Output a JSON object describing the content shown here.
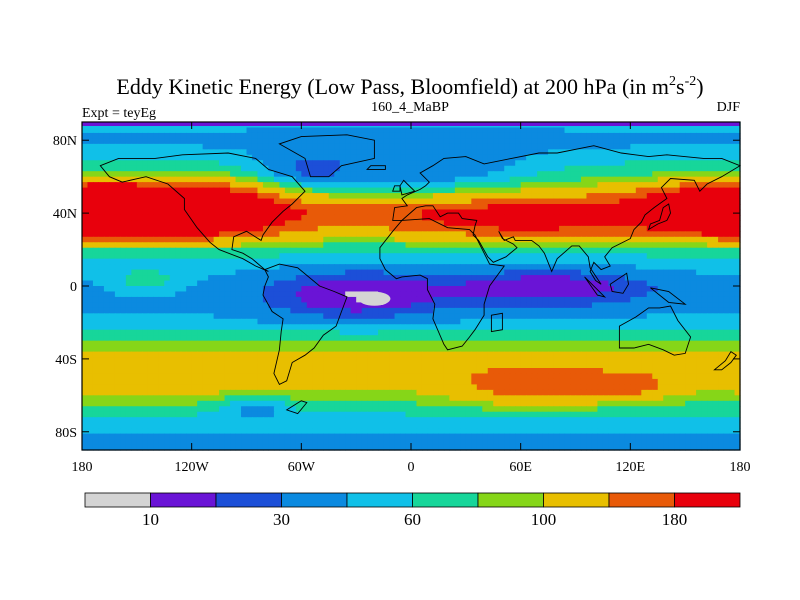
{
  "chart_data": {
    "type": "heatmap",
    "title": "Eddy Kinetic Energy (Low Pass, Bloomfield) at 200 hPa (in m",
    "title_unit_sup1": "2",
    "title_unit_mid": "s",
    "title_unit_sup2": "-2",
    "title_close": ")",
    "subtitle_left": "Expt = teyEg",
    "subtitle_center": "160_4_MaBP",
    "subtitle_right": "DJF",
    "x_ticks": [
      "180",
      "120W",
      "60W",
      "0",
      "60E",
      "120E",
      "180"
    ],
    "x_tick_values": [
      -180,
      -120,
      -60,
      0,
      60,
      120,
      180
    ],
    "y_ticks": [
      "80N",
      "40N",
      "0",
      "40S",
      "80S"
    ],
    "y_tick_values": [
      80,
      40,
      0,
      -40,
      -80
    ],
    "xlim": [
      -180,
      180
    ],
    "ylim": [
      -90,
      90
    ],
    "colorbar_levels": [
      0,
      10,
      20,
      30,
      45,
      60,
      80,
      100,
      140,
      180,
      250
    ],
    "colorbar_colors": [
      "#d4d4d4",
      "#6a14d6",
      "#1c4fd8",
      "#0b8ae0",
      "#10c0e8",
      "#17d69a",
      "#86d618",
      "#e8bf00",
      "#e85a08",
      "#e8000c"
    ],
    "colorbar_labels": [
      "10",
      "30",
      "60",
      "100",
      "180"
    ],
    "colorbar_label_positions": [
      1,
      3,
      5,
      7,
      9
    ],
    "field_bands": [
      {
        "lat": 90,
        "value": 50
      },
      {
        "lat": 80,
        "value": 40
      },
      {
        "lat": 70,
        "value": 55
      },
      {
        "lat": 60,
        "value": 75
      },
      {
        "lat": 50,
        "value": 120
      },
      {
        "lat": 40,
        "value": 160
      },
      {
        "lat": 30,
        "value": 120
      },
      {
        "lat": 20,
        "value": 65
      },
      {
        "lat": 10,
        "value": 50
      },
      {
        "lat": 0,
        "value": 40
      },
      {
        "lat": -10,
        "value": 40
      },
      {
        "lat": -20,
        "value": 50
      },
      {
        "lat": -30,
        "value": 80
      },
      {
        "lat": -40,
        "value": 110
      },
      {
        "lat": -50,
        "value": 115
      },
      {
        "lat": -60,
        "value": 90
      },
      {
        "lat": -70,
        "value": 60
      },
      {
        "lat": -80,
        "value": 45
      },
      {
        "lat": -90,
        "value": 40
      }
    ],
    "field_features": [
      {
        "lon": -155,
        "lat": 43,
        "value": 150,
        "sx": 45,
        "sy": 9
      },
      {
        "lon": -110,
        "lat": 40,
        "value": 90,
        "sx": 30,
        "sy": 10
      },
      {
        "lon": 175,
        "lat": 41,
        "value": 120,
        "sx": 30,
        "sy": 9
      },
      {
        "lon": 60,
        "lat": 37,
        "value": 80,
        "sx": 45,
        "sy": 7
      },
      {
        "lon": -60,
        "lat": 58,
        "value": -40,
        "sx": 22,
        "sy": 10
      },
      {
        "lon": 10,
        "lat": 58,
        "value": -40,
        "sx": 40,
        "sy": 12
      },
      {
        "lon": -30,
        "lat": -5,
        "value": -30,
        "sx": 35,
        "sy": 12
      },
      {
        "lon": 75,
        "lat": 0,
        "value": -30,
        "sx": 40,
        "sy": 8
      },
      {
        "lon": -145,
        "lat": 2,
        "value": 25,
        "sx": 15,
        "sy": 5
      },
      {
        "lon": 70,
        "lat": -55,
        "value": 70,
        "sx": 30,
        "sy": 8
      },
      {
        "lon": 120,
        "lat": -55,
        "value": 45,
        "sx": 15,
        "sy": 5
      },
      {
        "lon": -85,
        "lat": -65,
        "value": -35,
        "sx": 15,
        "sy": 5
      },
      {
        "lon": -120,
        "lat": -50,
        "value": 20,
        "sx": 50,
        "sy": 10
      }
    ]
  }
}
